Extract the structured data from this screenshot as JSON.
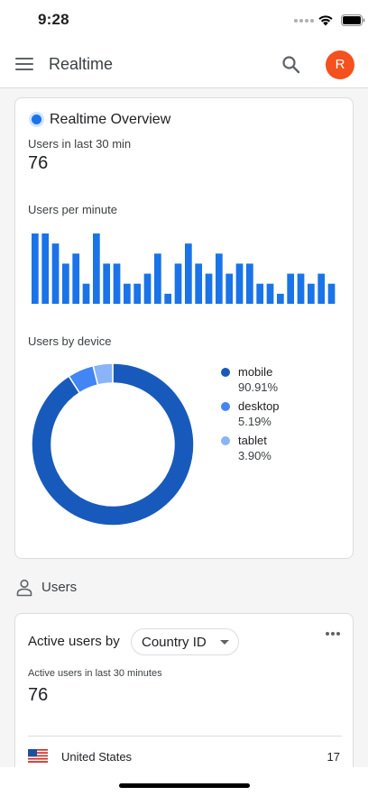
{
  "status_bar": {
    "time": "9:28"
  },
  "app_bar": {
    "title": "Realtime",
    "avatar_letter": "R"
  },
  "overview": {
    "title": "Realtime Overview",
    "users_label": "Users in last 30 min",
    "users_value": "76",
    "per_minute_label": "Users per minute",
    "device_label": "Users by device"
  },
  "chart_data": [
    {
      "type": "bar",
      "title": "Users per minute",
      "values": [
        7,
        7,
        6,
        4,
        5,
        2,
        7,
        4,
        4,
        2,
        2,
        3,
        5,
        1,
        4,
        6,
        4,
        3,
        5,
        3,
        4,
        4,
        2,
        2,
        1,
        3,
        3,
        2,
        3,
        2
      ],
      "ylim": [
        0,
        7
      ],
      "color": "#1a73e8",
      "grid": false
    },
    {
      "type": "pie",
      "title": "Users by device",
      "slices": [
        {
          "name": "mobile",
          "value": 90.91,
          "label": "90.91%",
          "color": "#185abc"
        },
        {
          "name": "desktop",
          "value": 5.19,
          "label": "5.19%",
          "color": "#4285f4"
        },
        {
          "name": "tablet",
          "value": 3.9,
          "label": "3.90%",
          "color": "#8ab4f8"
        }
      ],
      "legend": "right"
    }
  ],
  "users_section": {
    "title": "Users"
  },
  "active_users": {
    "label": "Active users by",
    "dimension": "Country ID",
    "sub_label": "Active users in last 30 minutes",
    "value": "76",
    "rows": [
      {
        "country": "United States",
        "value": "17"
      }
    ]
  },
  "colors": {
    "accent": "#1a73e8",
    "avatar": "#f4511e"
  },
  "icons": [
    "menu-icon",
    "search-icon",
    "person-icon",
    "more-icon",
    "chevron-down-icon",
    "us-flag-icon",
    "wifi-icon",
    "battery-icon"
  ]
}
